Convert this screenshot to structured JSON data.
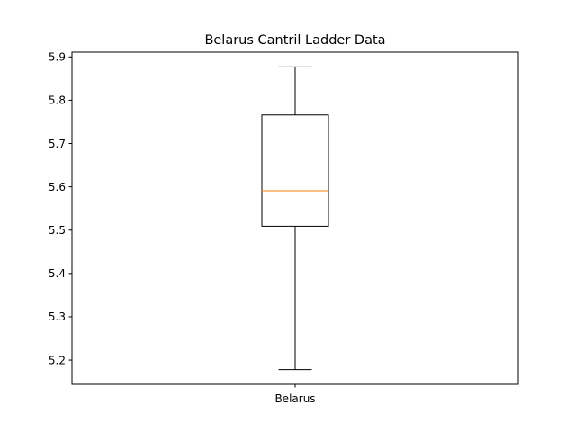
{
  "chart_data": {
    "type": "box",
    "title": "Belarus Cantril Ladder Data",
    "xlabel": "",
    "ylabel": "",
    "categories": [
      "Belarus"
    ],
    "boxes": [
      {
        "label": "Belarus",
        "whisker_low": 5.178,
        "q1": 5.509,
        "median": 5.591,
        "q3": 5.766,
        "whisker_high": 5.877
      }
    ],
    "ylim": [
      5.144,
      5.911
    ],
    "yticks": [
      5.2,
      5.3,
      5.4,
      5.5,
      5.6,
      5.7,
      5.8,
      5.9
    ],
    "ytick_labels": [
      "5.2",
      "5.3",
      "5.4",
      "5.5",
      "5.6",
      "5.7",
      "5.8",
      "5.9"
    ],
    "grid": false,
    "legend": "none",
    "colors": {
      "box": "#000000",
      "median": "#ff7f0e",
      "axes": "#000000",
      "background": "#ffffff"
    }
  }
}
